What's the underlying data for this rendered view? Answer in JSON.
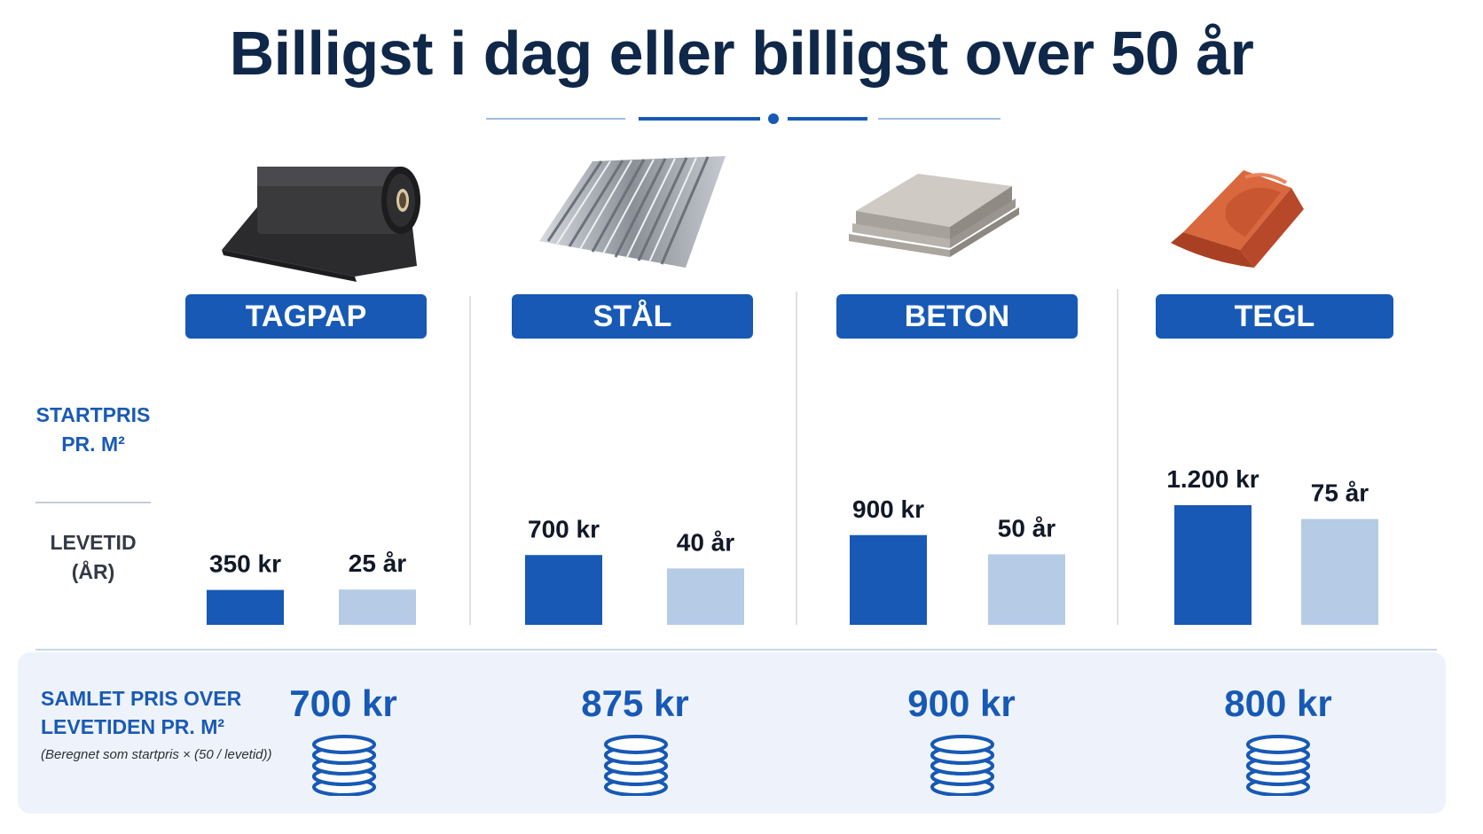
{
  "title": "Billigst i dag eller billigst over 50 år",
  "colors": {
    "title": "#0f2748",
    "accent": "#1759b5",
    "price_bar": "#1759b5",
    "lifespan_bar": "#b5cbe6",
    "panel": "#eef3fb"
  },
  "side_labels": {
    "start_line1": "STARTPRIS",
    "start_line2": "PR. M²",
    "life_line1": "LEVETID",
    "life_line2": "(ÅR)"
  },
  "materials": [
    {
      "name": "TAGPAP",
      "icon": "roofing-felt-roll-icon",
      "price_label": "350 kr",
      "life_label": "25 år",
      "total_label": "700 kr"
    },
    {
      "name": "STÅL",
      "icon": "corrugated-steel-sheet-icon",
      "price_label": "700 kr",
      "life_label": "40 år",
      "total_label": "875 kr"
    },
    {
      "name": "BETON",
      "icon": "concrete-tile-icon",
      "price_label": "900 kr",
      "life_label": "50 år",
      "total_label": "900 kr"
    },
    {
      "name": "TEGL",
      "icon": "clay-roof-tile-icon",
      "price_label": "1.200 kr",
      "life_label": "75 år",
      "total_label": "800 kr"
    }
  ],
  "bottom": {
    "label_line1": "SAMLET PRIS OVER",
    "label_line2": "LEVETIDEN PR. M²",
    "note": "(Beregnet som startpris × (50 / levetid))",
    "coin_icon": "coin-stack-icon"
  },
  "chart_data": {
    "type": "bar",
    "categories": [
      "TAGPAP",
      "STÅL",
      "BETON",
      "TEGL"
    ],
    "series": [
      {
        "values": [
          350,
          700,
          900,
          1200
        ]
      },
      {
        "values": [
          25,
          40,
          50,
          75
        ]
      }
    ],
    "value_labels": [
      [
        "350 kr",
        "700 kr",
        "900 kr",
        "1.200 kr"
      ],
      [
        "25 år",
        "40 år",
        "50 år",
        "75 år"
      ]
    ],
    "totals": [
      700,
      875,
      900,
      800
    ],
    "grid": false
  }
}
